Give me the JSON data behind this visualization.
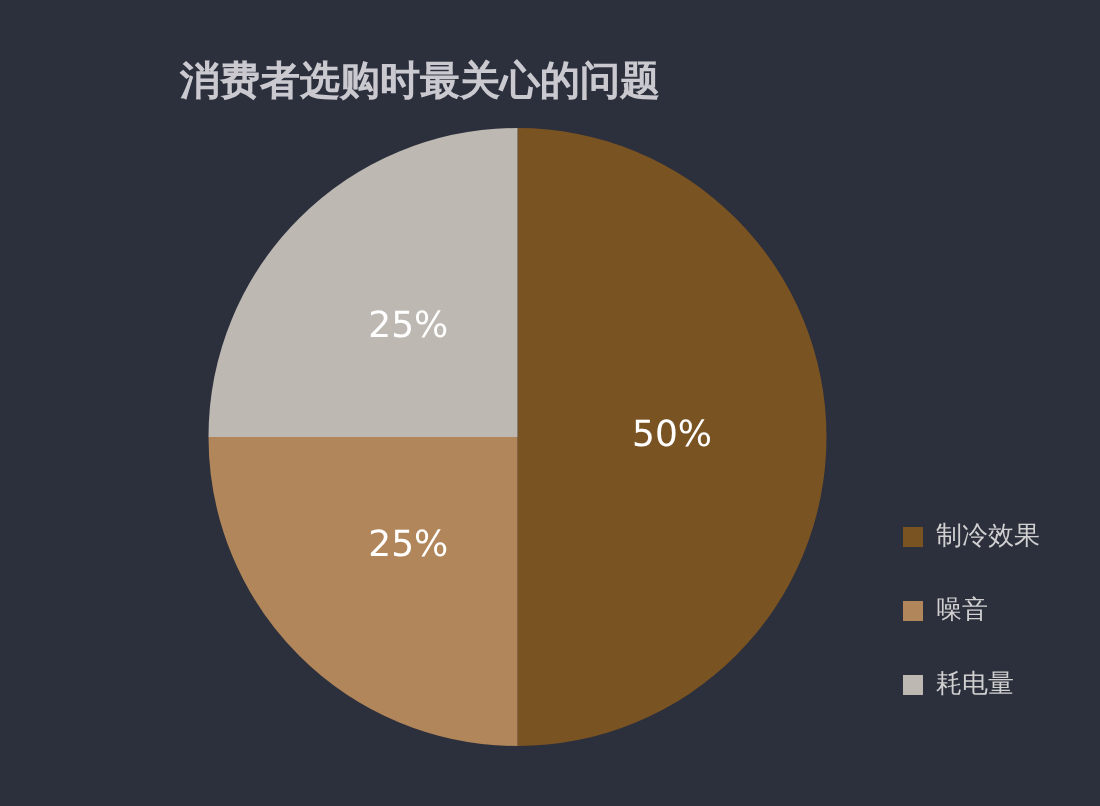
{
  "chart_data": {
    "type": "pie",
    "title": "消费者选购时最关心的问题",
    "categories": [
      "制冷效果",
      "噪音",
      "耗电量"
    ],
    "values": [
      50,
      25,
      25
    ],
    "colors": [
      "#7a5322",
      "#b0865a",
      "#bdb8b2"
    ],
    "value_labels": [
      "50%",
      "25%",
      "25%"
    ],
    "legend": "bottom right"
  }
}
